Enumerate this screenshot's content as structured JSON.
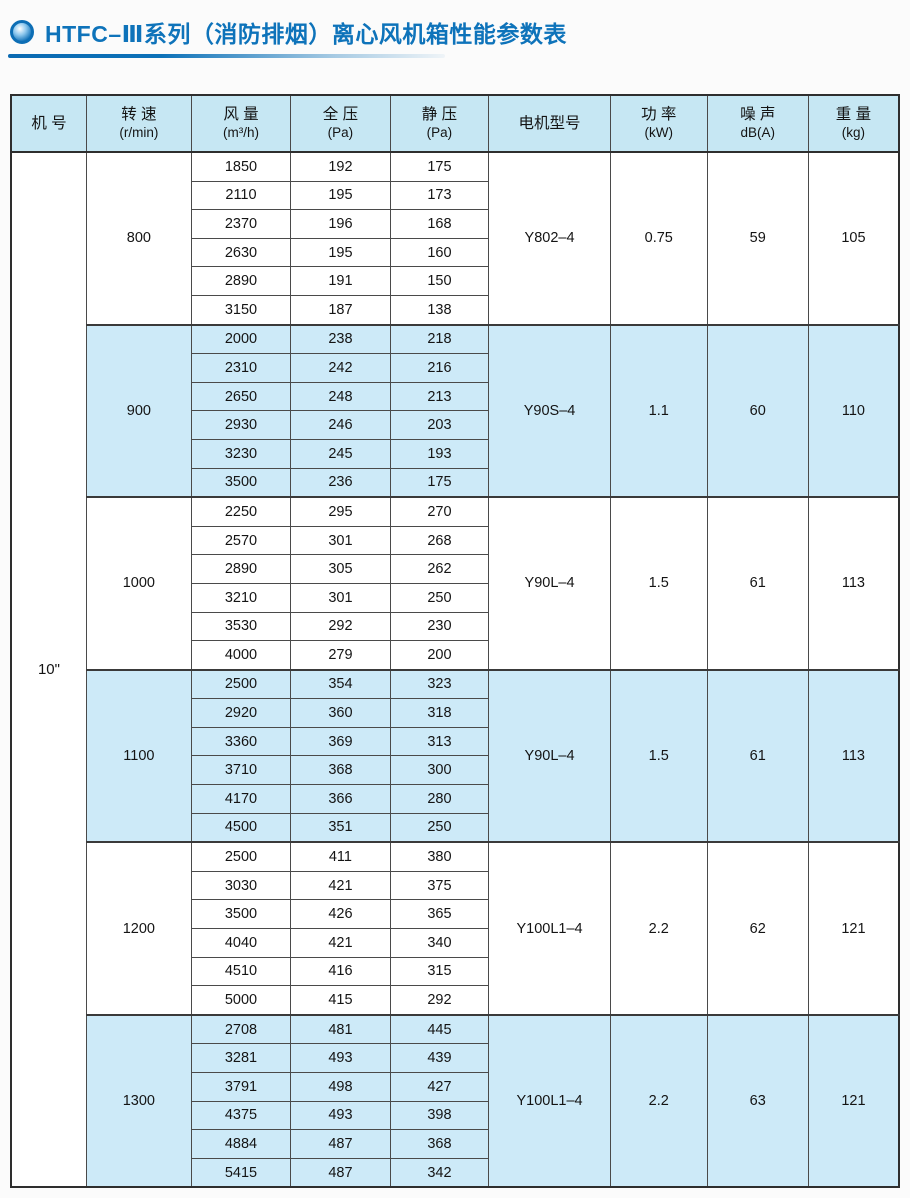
{
  "title": {
    "text": "HTFC–Ⅲ系列（消防排烟）离心风机箱性能参数表",
    "accent_color": "#0e73ba"
  },
  "colors": {
    "header_bg": "#c6e7f3",
    "stripe_bg": "#cdeaf8",
    "grid_line": "#4a4a4a"
  },
  "table": {
    "headers": [
      {
        "l1": "机 号",
        "l2": ""
      },
      {
        "l1": "转 速",
        "l2": "(r/min)"
      },
      {
        "l1": "风 量",
        "l2": "(m³/h)"
      },
      {
        "l1": "全 压",
        "l2": "(Pa)"
      },
      {
        "l1": "静 压",
        "l2": "(Pa)"
      },
      {
        "l1": "电机型号",
        "l2": ""
      },
      {
        "l1": "功 率",
        "l2": "(kW)"
      },
      {
        "l1": "噪 声",
        "l2": "dB(A)"
      },
      {
        "l1": "重 量",
        "l2": "(kg)"
      }
    ],
    "machine_no": "10\"",
    "groups": [
      {
        "speed": "800",
        "shaded": false,
        "rows": [
          [
            1850,
            192,
            175
          ],
          [
            2110,
            195,
            173
          ],
          [
            2370,
            196,
            168
          ],
          [
            2630,
            195,
            160
          ],
          [
            2890,
            191,
            150
          ],
          [
            3150,
            187,
            138
          ]
        ],
        "motor": "Y802–4",
        "power": "0.75",
        "noise": "59",
        "weight": "105"
      },
      {
        "speed": "900",
        "shaded": true,
        "rows": [
          [
            2000,
            238,
            218
          ],
          [
            2310,
            242,
            216
          ],
          [
            2650,
            248,
            213
          ],
          [
            2930,
            246,
            203
          ],
          [
            3230,
            245,
            193
          ],
          [
            3500,
            236,
            175
          ]
        ],
        "motor": "Y90S–4",
        "power": "1.1",
        "noise": "60",
        "weight": "110"
      },
      {
        "speed": "1000",
        "shaded": false,
        "rows": [
          [
            2250,
            295,
            270
          ],
          [
            2570,
            301,
            268
          ],
          [
            2890,
            305,
            262
          ],
          [
            3210,
            301,
            250
          ],
          [
            3530,
            292,
            230
          ],
          [
            4000,
            279,
            200
          ]
        ],
        "motor": "Y90L–4",
        "power": "1.5",
        "noise": "61",
        "weight": "113"
      },
      {
        "speed": "1100",
        "shaded": true,
        "rows": [
          [
            2500,
            354,
            323
          ],
          [
            2920,
            360,
            318
          ],
          [
            3360,
            369,
            313
          ],
          [
            3710,
            368,
            300
          ],
          [
            4170,
            366,
            280
          ],
          [
            4500,
            351,
            250
          ]
        ],
        "motor": "Y90L–4",
        "power": "1.5",
        "noise": "61",
        "weight": "113"
      },
      {
        "speed": "1200",
        "shaded": false,
        "rows": [
          [
            2500,
            411,
            380
          ],
          [
            3030,
            421,
            375
          ],
          [
            3500,
            426,
            365
          ],
          [
            4040,
            421,
            340
          ],
          [
            4510,
            416,
            315
          ],
          [
            5000,
            415,
            292
          ]
        ],
        "motor": "Y100L1–4",
        "power": "2.2",
        "noise": "62",
        "weight": "121"
      },
      {
        "speed": "1300",
        "shaded": true,
        "rows": [
          [
            2708,
            481,
            445
          ],
          [
            3281,
            493,
            439
          ],
          [
            3791,
            498,
            427
          ],
          [
            4375,
            493,
            398
          ],
          [
            4884,
            487,
            368
          ],
          [
            5415,
            487,
            342
          ]
        ],
        "motor": "Y100L1–4",
        "power": "2.2",
        "noise": "63",
        "weight": "121"
      }
    ]
  }
}
